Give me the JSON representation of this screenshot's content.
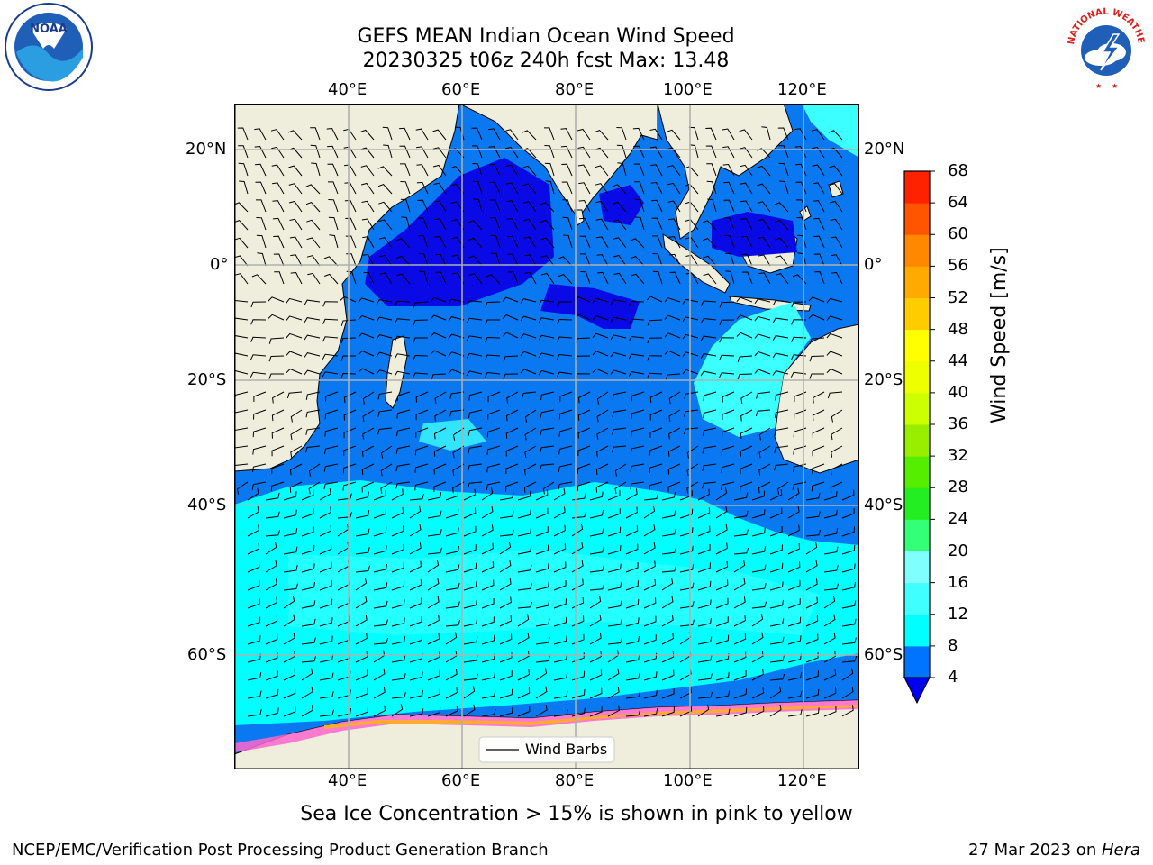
{
  "title": {
    "line1": "GEFS MEAN Indian Ocean Wind Speed",
    "line2": "20230325 t06z 240h fcst   Max: 13.48"
  },
  "map": {
    "lon_labels_top": [
      "40°E",
      "60°E",
      "80°E",
      "100°E",
      "120°E"
    ],
    "lon_labels_bottom": [
      "40°E",
      "60°E",
      "80°E",
      "100°E",
      "120°E"
    ],
    "lat_labels_left": [
      "20°N",
      "0°",
      "20°S",
      "40°S",
      "60°S"
    ],
    "lat_labels_right": [
      "20°N",
      "0°",
      "20°S",
      "40°S",
      "60°S"
    ],
    "legend_label": "Wind Barbs",
    "colors": {
      "land": "#efeedc",
      "grid": "#b0b0b0",
      "dark_blue": "#0a0ae6",
      "mid_blue": "#0a78f0",
      "cyan": "#00ffff",
      "light_cyan": "#4cffff",
      "ice_pink": "#ff66cc",
      "ice_orange": "#ffaa33"
    }
  },
  "colorbar": {
    "label": "Wind Speed [m/s]",
    "ticks": [
      "4",
      "8",
      "12",
      "16",
      "20",
      "24",
      "28",
      "32",
      "36",
      "40",
      "44",
      "48",
      "52",
      "56",
      "60",
      "64",
      "68"
    ],
    "colors": [
      "#0073ff",
      "#00ffff",
      "#40ffff",
      "#80ffff",
      "#33ff77",
      "#22ee22",
      "#55ee00",
      "#99ee00",
      "#ccff00",
      "#eeff00",
      "#ffff00",
      "#ffcc00",
      "#ffaa00",
      "#ff8800",
      "#ff5500",
      "#ff2200"
    ],
    "under_color": "#0000ee"
  },
  "subtitle": "Sea Ice Concentration > 15% is shown in pink to yellow",
  "footer": {
    "left": "NCEP/EMC/Verification Post Processing Product Generation Branch",
    "right_date": "27 Mar 2023 on ",
    "right_machine": "Hera"
  },
  "logos": {
    "noaa": "NOAA",
    "nws": "NATIONAL WEATHER SERVICE"
  }
}
